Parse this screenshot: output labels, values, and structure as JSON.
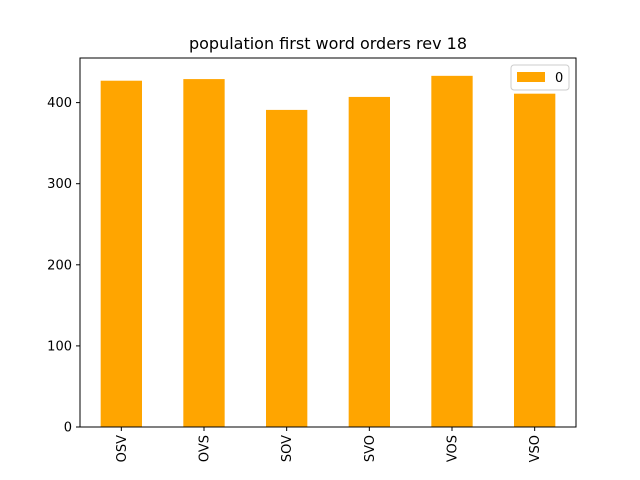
{
  "chart_data": {
    "type": "bar",
    "title": "population first word orders rev 18",
    "categories": [
      "OSV",
      "OVS",
      "SOV",
      "SVO",
      "VOS",
      "VSO"
    ],
    "series": [
      {
        "name": "0",
        "values": [
          427,
          429,
          391,
          407,
          433,
          411
        ],
        "color": "#ffa500"
      }
    ],
    "ylim": [
      0,
      455
    ],
    "yticks": [
      0,
      100,
      200,
      300,
      400
    ],
    "xlabel": "",
    "ylabel": "",
    "grid": false,
    "legend": {
      "placement": "top-right"
    }
  }
}
